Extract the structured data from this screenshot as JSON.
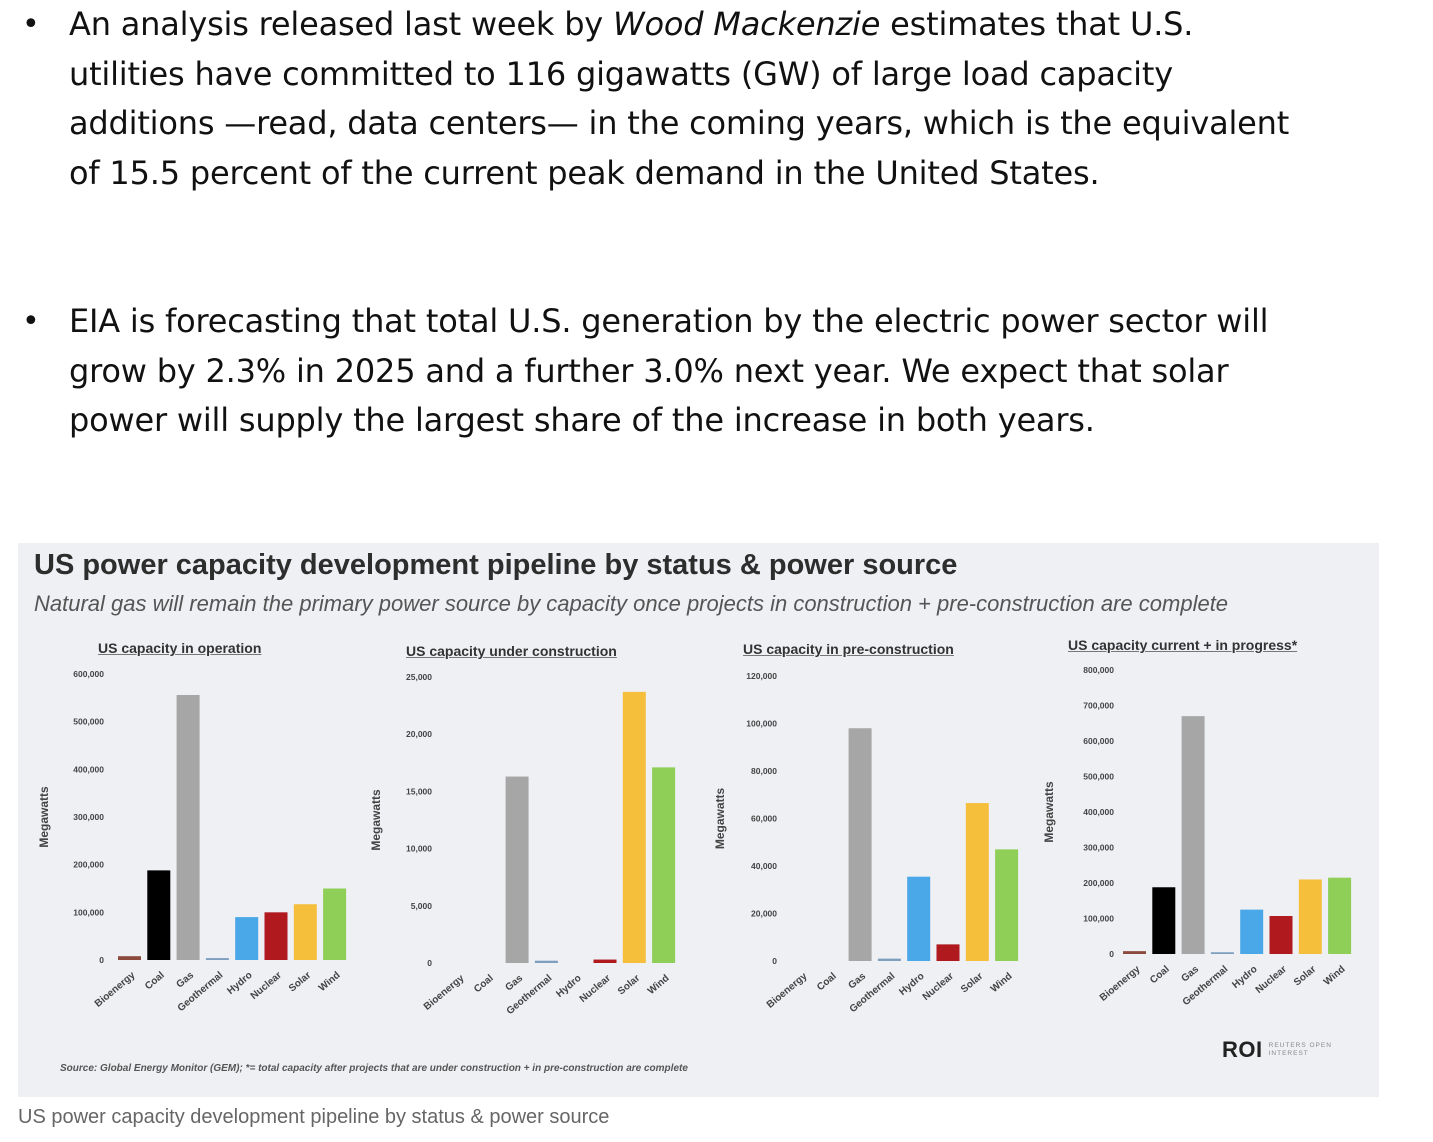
{
  "bullets": [
    {
      "text_before": "An analysis released last week by ",
      "text_italic": "Wood Mackenzie",
      "text_after": " estimates that U.S. utilities have committed to 116 gigawatts (GW) of large load capacity additions —read, data centers— in the coming years, which is the equivalent of 15.5 percent of the current peak demand in the United States."
    },
    {
      "text": "EIA is forecasting that total U.S. generation by the electric power sector will grow by 2.3% in 2025 and a further 3.0% next year. We expect that solar power will supply the largest share of the increase in both years."
    }
  ],
  "figure": {
    "title": "US power capacity development pipeline by status & power source",
    "subtitle": "Natural gas will remain the primary power source by capacity once projects in construction + pre-construction are complete",
    "source": "Source: Global Energy Monitor (GEM); *= total capacity after projects that are under construction + in pre-construction are complete",
    "logo": "ROI",
    "logo_sub": "REUTERS OPEN INTEREST",
    "caption": "US power capacity development pipeline by status & power source"
  },
  "colors": {
    "Bioenergy": "#8b4a3c",
    "Coal": "#000000",
    "Gas": "#a6a6a6",
    "Geothermal": "#7f9fbf",
    "Hydro": "#4aa8e8",
    "Nuclear": "#b0191e",
    "Solar": "#f5bf3c",
    "Wind": "#8fcf57"
  },
  "chart_data": [
    {
      "type": "bar",
      "title": "US capacity in operation",
      "ylabel": "Megawatts",
      "categories": [
        "Bioenergy",
        "Coal",
        "Gas",
        "Geothermal",
        "Hydro",
        "Nuclear",
        "Solar",
        "Wind"
      ],
      "values": [
        8000,
        188000,
        556000,
        4000,
        90000,
        100000,
        117000,
        150000
      ],
      "ylim": [
        0,
        600000
      ],
      "ticks": [
        0,
        100000,
        200000,
        300000,
        400000,
        500000,
        600000
      ],
      "tick_labels": [
        "0",
        "100,000",
        "200,000",
        "300,000",
        "400,000",
        "500,000",
        "600,000"
      ]
    },
    {
      "type": "bar",
      "title": "US capacity under construction",
      "ylabel": "Megawatts",
      "categories": [
        "Bioenergy",
        "Coal",
        "Gas",
        "Geothermal",
        "Hydro",
        "Nuclear",
        "Solar",
        "Wind"
      ],
      "values": [
        0,
        0,
        16300,
        200,
        0,
        300,
        23700,
        17100
      ],
      "ylim": [
        0,
        25000
      ],
      "ticks": [
        0,
        5000,
        10000,
        15000,
        20000,
        25000
      ],
      "tick_labels": [
        "0",
        "5,000",
        "10,000",
        "15,000",
        "20,000",
        "25,000"
      ]
    },
    {
      "type": "bar",
      "title": "US capacity in pre-construction",
      "ylabel": "Megawatts",
      "categories": [
        "Bioenergy",
        "Coal",
        "Gas",
        "Geothermal",
        "Hydro",
        "Nuclear",
        "Solar",
        "Wind"
      ],
      "values": [
        0,
        0,
        98000,
        1000,
        35500,
        7000,
        66500,
        47000
      ],
      "ylim": [
        0,
        120000
      ],
      "ticks": [
        0,
        20000,
        40000,
        60000,
        80000,
        100000,
        120000
      ],
      "tick_labels": [
        "0",
        "20,000",
        "40,000",
        "60,000",
        "80,000",
        "100,000",
        "120,000"
      ]
    },
    {
      "type": "bar",
      "title": "US capacity current + in progress*",
      "ylabel": "Megawatts",
      "categories": [
        "Bioenergy",
        "Coal",
        "Gas",
        "Geothermal",
        "Hydro",
        "Nuclear",
        "Solar",
        "Wind"
      ],
      "values": [
        8000,
        188000,
        670000,
        5000,
        125000,
        107000,
        210000,
        215000
      ],
      "ylim": [
        0,
        800000
      ],
      "ticks": [
        0,
        100000,
        200000,
        300000,
        400000,
        500000,
        600000,
        700000,
        800000
      ],
      "tick_labels": [
        "0",
        "100,000",
        "200,000",
        "300,000",
        "400,000",
        "500,000",
        "600,000",
        "700,000",
        "800,000"
      ]
    }
  ]
}
